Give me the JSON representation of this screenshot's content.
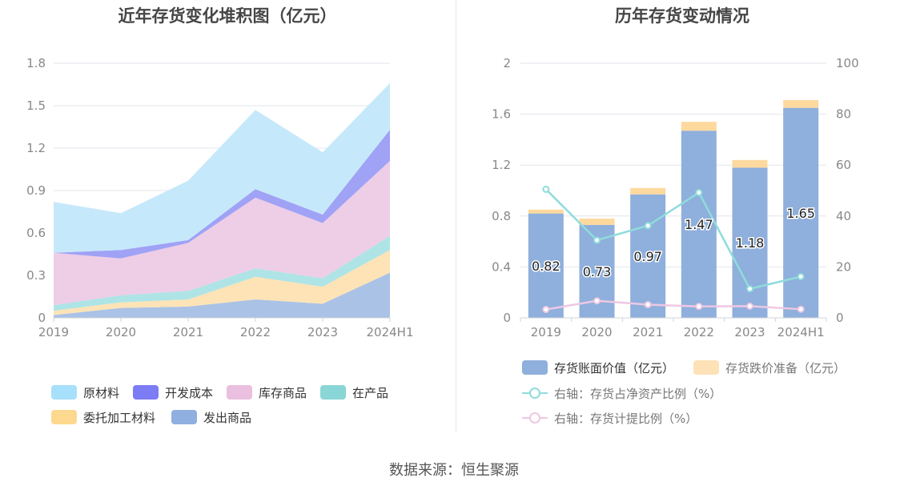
{
  "left_chart": {
    "title": "近年存货变化堆积图（亿元）",
    "legend": [
      {
        "name": "原材料",
        "color": "#a7e0fa"
      },
      {
        "name": "开发成本",
        "color": "#7c7cf5"
      },
      {
        "name": "库存商品",
        "color": "#eabfdf"
      },
      {
        "name": "在产品",
        "color": "#8ad6d6"
      },
      {
        "name": "委托加工材料",
        "color": "#fcd98f"
      },
      {
        "name": "发出商品",
        "color": "#8fafe0"
      }
    ]
  },
  "right_chart": {
    "title": "历年存货变动情况",
    "legend": [
      {
        "name": "存货账面价值（亿元）",
        "color": "#8fafdc",
        "kind": "bar"
      },
      {
        "name": "存货跌价准备（亿元）",
        "color": "#fde2b7",
        "kind": "bar"
      },
      {
        "name": "右轴：存货占净资产比例（%）",
        "color": "#8fdcdc",
        "kind": "line"
      },
      {
        "name": "右轴：存货计提比例（%）",
        "color": "#eec8e2",
        "kind": "line"
      }
    ]
  },
  "footer": "数据来源：恒生聚源",
  "chart_data": [
    {
      "type": "area",
      "stacked": true,
      "title": "近年存货变化堆积图（亿元）",
      "categories": [
        "2019",
        "2020",
        "2021",
        "2022",
        "2023",
        "2024H1"
      ],
      "ylim": [
        0,
        1.8
      ],
      "yticks": [
        "0",
        "0.3",
        "0.6",
        "0.9",
        "1.2",
        "1.5",
        "1.8"
      ],
      "grid": true,
      "legend_position": "bottom",
      "series": [
        {
          "name": "发出商品",
          "color": "#aac2e6",
          "values": [
            0.02,
            0.07,
            0.08,
            0.13,
            0.1,
            0.32
          ]
        },
        {
          "name": "委托加工材料",
          "color": "#fde3b6",
          "values": [
            0.03,
            0.04,
            0.05,
            0.16,
            0.12,
            0.16
          ]
        },
        {
          "name": "在产品",
          "color": "#aee4e6",
          "values": [
            0.04,
            0.05,
            0.06,
            0.06,
            0.06,
            0.1
          ]
        },
        {
          "name": "库存商品",
          "color": "#eecde6",
          "values": [
            0.37,
            0.26,
            0.34,
            0.5,
            0.39,
            0.53
          ]
        },
        {
          "name": "开发成本",
          "color": "#9fa2f5",
          "values": [
            0.0,
            0.06,
            0.02,
            0.06,
            0.06,
            0.22
          ]
        },
        {
          "name": "原材料",
          "color": "#c6e8fb",
          "values": [
            0.36,
            0.26,
            0.42,
            0.56,
            0.44,
            0.33
          ]
        }
      ]
    },
    {
      "type": "bar",
      "stacked": true,
      "title": "历年存货变动情况",
      "categories": [
        "2019",
        "2020",
        "2021",
        "2022",
        "2023",
        "2024H1"
      ],
      "ylim": [
        0,
        2
      ],
      "yticks": [
        "0",
        "0.4",
        "0.8",
        "1.2",
        "1.6",
        "2"
      ],
      "y2lim": [
        0,
        100
      ],
      "y2ticks": [
        "0",
        "20",
        "40",
        "60",
        "80",
        "100"
      ],
      "grid": true,
      "legend_position": "bottom",
      "series": [
        {
          "name": "存货账面价值（亿元）",
          "type": "bar",
          "color": "#8fafdc",
          "values": [
            0.82,
            0.73,
            0.97,
            1.47,
            1.18,
            1.65
          ],
          "labels": [
            "0.82",
            "0.73",
            "0.97",
            "1.47",
            "1.18",
            "1.65"
          ]
        },
        {
          "name": "存货跌价准备（亿元）",
          "type": "bar",
          "color": "#fdd99e",
          "values": [
            0.03,
            0.05,
            0.05,
            0.07,
            0.06,
            0.06
          ]
        },
        {
          "name": "右轴：存货占净资产比例（%）",
          "type": "line",
          "axis": "right",
          "color": "#8fdcdc",
          "values": [
            50.5,
            30.5,
            36.2,
            49.2,
            11.4,
            16.2
          ]
        },
        {
          "name": "右轴：存货计提比例（%）",
          "type": "line",
          "axis": "right",
          "color": "#eec8e2",
          "values": [
            3.3,
            6.7,
            5.2,
            4.5,
            4.6,
            3.4
          ]
        }
      ]
    }
  ]
}
